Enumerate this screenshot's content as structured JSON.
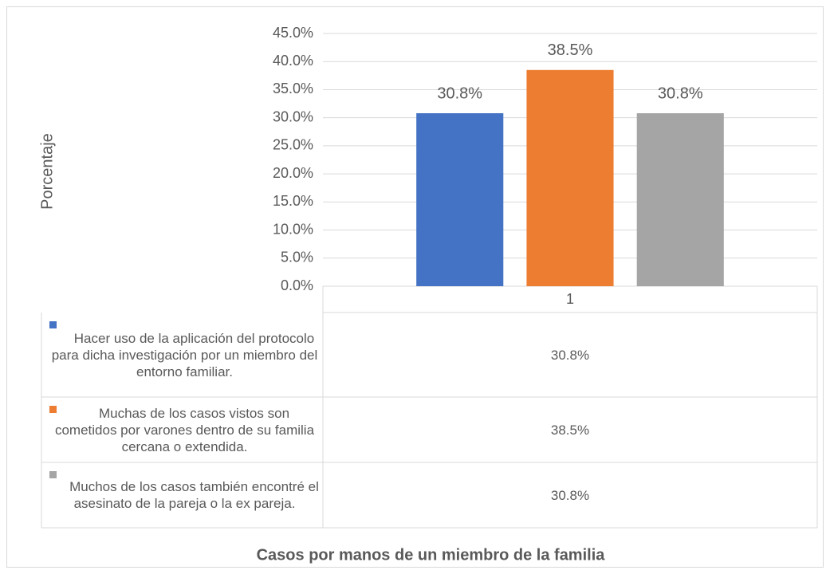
{
  "chart_data": {
    "type": "bar",
    "title": "Casos por manos de un miembro de la familia",
    "y_label": "Porcentaje",
    "categories": [
      "1"
    ],
    "series": [
      {
        "name": "Hacer uso de la aplicación del protocolo para dicha investigación por un miembro del entorno familiar.",
        "color": "#4472c4",
        "values": [
          30.8
        ],
        "value_labels": [
          "30.8%"
        ]
      },
      {
        "name": "Muchas de los casos vistos son cometidos por varones dentro de su familia cercana o extendida.",
        "color": "#ed7d31",
        "values": [
          38.5
        ],
        "value_labels": [
          "38.5%"
        ]
      },
      {
        "name": "Muchos de los casos también encontré el asesinato de la pareja o la ex pareja.",
        "color": "#a5a5a5",
        "values": [
          30.8
        ],
        "value_labels": [
          "30.8%"
        ]
      }
    ],
    "ylim": [
      0,
      45
    ],
    "yticks": [
      {
        "value": 0,
        "label": "0.0%"
      },
      {
        "value": 5,
        "label": "5.0%"
      },
      {
        "value": 10,
        "label": "10.0%"
      },
      {
        "value": 15,
        "label": "15.0%"
      },
      {
        "value": 20,
        "label": "20.0%"
      },
      {
        "value": 25,
        "label": "25.0%"
      },
      {
        "value": 30,
        "label": "30.0%"
      },
      {
        "value": 35,
        "label": "35.0%"
      },
      {
        "value": 40,
        "label": "40.0%"
      },
      {
        "value": 45,
        "label": "45.0%"
      }
    ],
    "grid": true,
    "legend": "table"
  }
}
